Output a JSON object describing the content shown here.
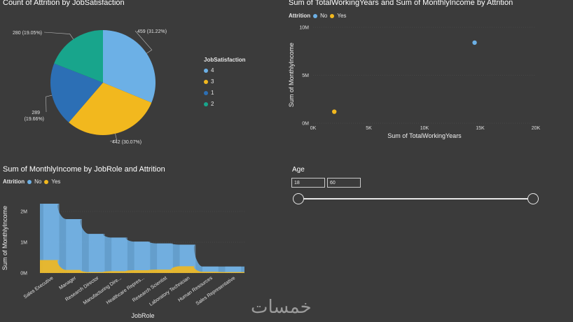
{
  "pie_chart": {
    "title": "Count of Attrition by JobSatisfaction",
    "legend_title": "JobSatisfaction",
    "legend": [
      {
        "label": "4",
        "color": "#6cb0e6"
      },
      {
        "label": "3",
        "color": "#f2b81e"
      },
      {
        "label": "1",
        "color": "#2c6fb5"
      },
      {
        "label": "2",
        "color": "#18a58c"
      }
    ]
  },
  "scatter_chart": {
    "title": "Sum of TotalWorkingYears and Sum of MonthlyIncome by Attrition",
    "legend_title": "Attrition",
    "legend": [
      {
        "label": "No",
        "color": "#6cb0e6"
      },
      {
        "label": "Yes",
        "color": "#f2b81e"
      }
    ]
  },
  "area_chart": {
    "title": "Sum of MonthlyIncome by JobRole and Attrition",
    "legend_title": "Attrition",
    "legend": [
      {
        "label": "No",
        "color": "#6cb0e6"
      },
      {
        "label": "Yes",
        "color": "#f2b81e"
      }
    ]
  },
  "age_slicer": {
    "title": "Age",
    "min_value": "18",
    "max_value": "60"
  },
  "watermark": "خمسات",
  "chart_data": [
    {
      "type": "pie",
      "title": "Count of Attrition by JobSatisfaction",
      "slices": [
        {
          "label": "4",
          "value": 459,
          "data_label": "459 (31.22%)",
          "color": "#6cb0e6"
        },
        {
          "label": "3",
          "value": 442,
          "data_label": "442 (30.07%)",
          "color": "#f2b81e"
        },
        {
          "label": "1",
          "value": 289,
          "data_label": "289 (19.66%)",
          "color": "#2c6fb5"
        },
        {
          "label": "2",
          "value": 280,
          "data_label": "280 (19.05%)",
          "color": "#18a58c"
        }
      ]
    },
    {
      "type": "scatter",
      "title": "Sum of TotalWorkingYears and Sum of MonthlyIncome by Attrition",
      "xlabel": "Sum of TotalWorkingYears",
      "ylabel": "Sum of MonthlyIncome",
      "xlim": [
        0,
        20000
      ],
      "ylim": [
        0,
        10000000
      ],
      "xticks": [
        "0K",
        "5K",
        "10K",
        "15K",
        "20K"
      ],
      "yticks": [
        "0M",
        "5M",
        "10M"
      ],
      "points": [
        {
          "series": "No",
          "x": 14500,
          "y": 8400000
        },
        {
          "series": "Yes",
          "x": 1900,
          "y": 1200000
        }
      ]
    },
    {
      "type": "area",
      "title": "Sum of MonthlyIncome by JobRole and Attrition",
      "xlabel": "JobRole",
      "ylabel": "Sum of MonthlyIncome",
      "ylim": [
        0,
        2500000
      ],
      "yticks": [
        "0M",
        "1M",
        "2M"
      ],
      "categories": [
        "Sales Executive",
        "Manager",
        "Research Director",
        "Manufacturing Dire...",
        "Healthcare Repres...",
        "Research Scientist",
        "Laboratory Technician",
        "Human Resources",
        "Sales Representative"
      ],
      "series": [
        {
          "name": "No",
          "values": [
            2250000,
            1750000,
            1270000,
            1150000,
            1020000,
            960000,
            920000,
            210000,
            210000
          ]
        },
        {
          "name": "Yes",
          "values": [
            420000,
            100000,
            30000,
            60000,
            90000,
            110000,
            220000,
            40000,
            30000
          ]
        }
      ]
    }
  ]
}
